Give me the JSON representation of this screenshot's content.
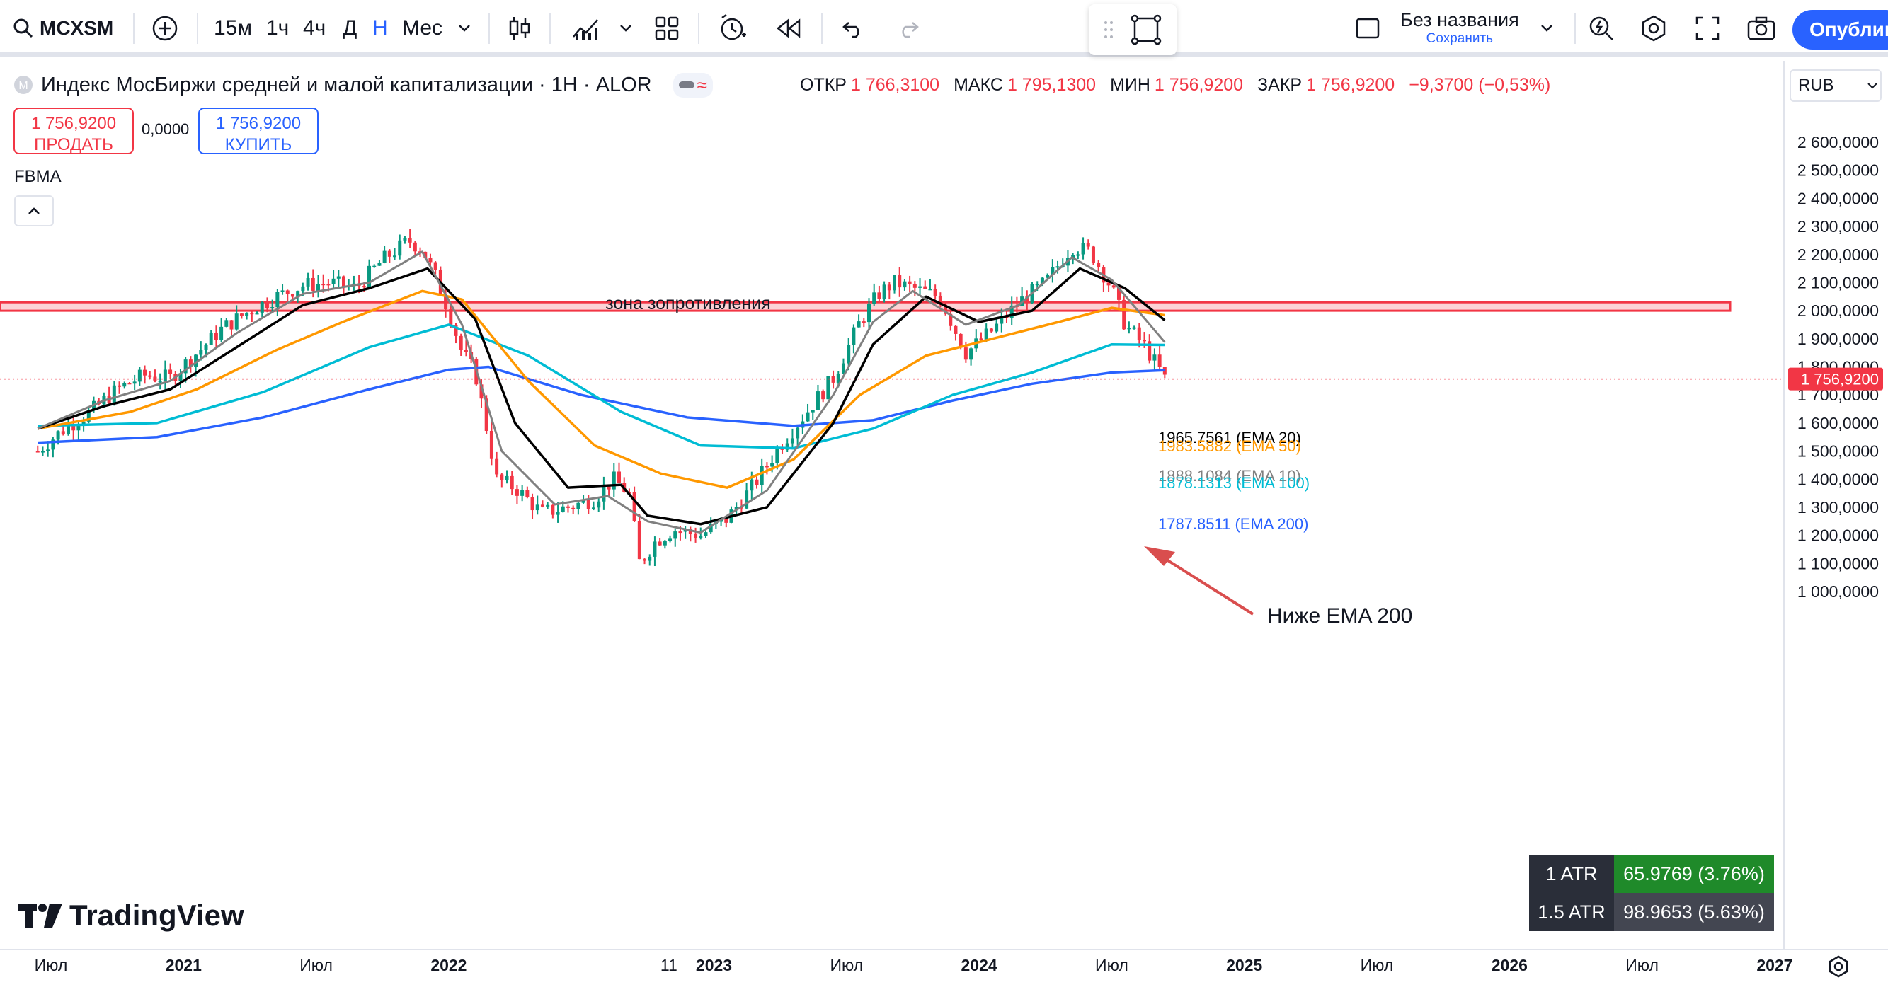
{
  "toolbar": {
    "symbol": "MCXSM",
    "intervals": [
      "15м",
      "1ч",
      "4ч",
      "Д",
      "Н",
      "Мес"
    ],
    "active_interval": "Н",
    "layout_name": "Без названия",
    "save_label": "Сохранить",
    "publish_label": "Опублик"
  },
  "legend": {
    "title": "Индекс МосБиржи средней и малой капитализации · 1Н · ALOR",
    "open_label": "ОТКР",
    "open": "1 766,3100",
    "high_label": "МАКС",
    "high": "1 795,1300",
    "low_label": "МИН",
    "low": "1 756,9200",
    "close_label": "ЗАКР",
    "close": "1 756,9200",
    "change": "−9,3700 (−0,53%)"
  },
  "trade": {
    "sell_price": "1 756,9200",
    "sell_label": "ПРОДАТЬ",
    "spread": "0,0000",
    "buy_price": "1 756,9200",
    "buy_label": "КУПИТЬ"
  },
  "indicator_name": "FBMA",
  "currency": "RUB",
  "atr": {
    "row1_label": "1 ATR",
    "row1_value": "65.9769 (3.76%)",
    "row2_label": "1.5 ATR",
    "row2_value": "98.9653 (5.63%)"
  },
  "logo_text": "TradingView",
  "colors": {
    "up": "#089981",
    "down": "#f23645",
    "ema10": "#808080",
    "ema20": "#000000",
    "ema50": "#ff9800",
    "ema100": "#00bcd4",
    "ema200": "#2962ff",
    "accent": "#2962ff"
  },
  "chart_data": {
    "type": "candlestick",
    "y_ticks": [
      "2 600,0000",
      "2 500,0000",
      "2 400,0000",
      "2 300,0000",
      "2 200,0000",
      "2 100,0000",
      "2 000,0000",
      "1 900,0000",
      "1 800,0000",
      "1 700,0000",
      "1 600,0000",
      "1 500,0000",
      "1 400,0000",
      "1 300,0000",
      "1 200,0000",
      "1 100,0000",
      "1 000,0000"
    ],
    "x_ticks": [
      "Июл",
      "2021",
      "Июл",
      "2022",
      "11",
      "2023",
      "Июл",
      "2024",
      "Июл",
      "2025",
      "Июл",
      "2026",
      "Июл",
      "2027"
    ],
    "last_price_label": "1 756,9200",
    "zone_label": "зона зопротивления",
    "zone_range": [
      2000,
      2030
    ],
    "ema_labels": [
      {
        "text": "1965.7561 (EMA 20)",
        "value": 1965.7561,
        "color": "#000000"
      },
      {
        "text": "1983.5882 (EMA 50)",
        "value": 1983.5882,
        "color": "#ff9800"
      },
      {
        "text": "1888.1084 (EMA 10)",
        "value": 1888.1084,
        "color": "#808080"
      },
      {
        "text": "1878.1313 (EMA 100)",
        "value": 1878.1313,
        "color": "#00bcd4"
      },
      {
        "text": "1787.8511 (EMA 200)",
        "value": 1787.8511,
        "color": "#2962ff"
      }
    ],
    "annotation": "Ниже EMA 200",
    "price_series": [
      [
        2020.45,
        1500
      ],
      [
        2020.55,
        1580
      ],
      [
        2020.65,
        1640
      ],
      [
        2020.75,
        1720
      ],
      [
        2020.85,
        1770
      ],
      [
        2020.95,
        1760
      ],
      [
        2021.05,
        1850
      ],
      [
        2021.15,
        1940
      ],
      [
        2021.25,
        2000
      ],
      [
        2021.35,
        2050
      ],
      [
        2021.45,
        2090
      ],
      [
        2021.55,
        2100
      ],
      [
        2021.65,
        2080
      ],
      [
        2021.75,
        2180
      ],
      [
        2021.85,
        2250
      ],
      [
        2021.9,
        2220
      ],
      [
        2021.95,
        2120
      ],
      [
        2022.0,
        2000
      ],
      [
        2022.05,
        1850
      ],
      [
        2022.1,
        1780
      ],
      [
        2022.15,
        1550
      ],
      [
        2022.18,
        1400
      ],
      [
        2022.25,
        1370
      ],
      [
        2022.35,
        1280
      ],
      [
        2022.45,
        1300
      ],
      [
        2022.55,
        1330
      ],
      [
        2022.62,
        1400
      ],
      [
        2022.68,
        1350
      ],
      [
        2022.72,
        1100
      ],
      [
        2022.78,
        1180
      ],
      [
        2022.85,
        1220
      ],
      [
        2022.95,
        1200
      ],
      [
        2023.05,
        1260
      ],
      [
        2023.15,
        1380
      ],
      [
        2023.25,
        1520
      ],
      [
        2023.35,
        1640
      ],
      [
        2023.45,
        1760
      ],
      [
        2023.55,
        1960
      ],
      [
        2023.62,
        2060
      ],
      [
        2023.68,
        2100
      ],
      [
        2023.75,
        2080
      ],
      [
        2023.85,
        2050
      ],
      [
        2023.9,
        1950
      ],
      [
        2023.95,
        1850
      ],
      [
        2024.05,
        1930
      ],
      [
        2024.15,
        2030
      ],
      [
        2024.25,
        2100
      ],
      [
        2024.35,
        2230
      ],
      [
        2024.42,
        2210
      ],
      [
        2024.5,
        2080
      ],
      [
        2024.55,
        1950
      ],
      [
        2024.62,
        1880
      ],
      [
        2024.68,
        1790
      ],
      [
        2024.7,
        1757
      ]
    ],
    "ema10": [
      [
        2020.45,
        1580
      ],
      [
        2020.7,
        1680
      ],
      [
        2020.95,
        1750
      ],
      [
        2021.2,
        1920
      ],
      [
        2021.45,
        2060
      ],
      [
        2021.7,
        2100
      ],
      [
        2021.9,
        2210
      ],
      [
        2022.05,
        1950
      ],
      [
        2022.2,
        1500
      ],
      [
        2022.4,
        1310
      ],
      [
        2022.6,
        1340
      ],
      [
        2022.75,
        1250
      ],
      [
        2022.95,
        1210
      ],
      [
        2023.2,
        1360
      ],
      [
        2023.45,
        1700
      ],
      [
        2023.6,
        1960
      ],
      [
        2023.75,
        2070
      ],
      [
        2023.95,
        1950
      ],
      [
        2024.15,
        2020
      ],
      [
        2024.35,
        2190
      ],
      [
        2024.5,
        2110
      ],
      [
        2024.7,
        1888
      ]
    ],
    "ema20": [
      [
        2020.45,
        1580
      ],
      [
        2020.7,
        1660
      ],
      [
        2020.95,
        1720
      ],
      [
        2021.2,
        1870
      ],
      [
        2021.45,
        2020
      ],
      [
        2021.7,
        2080
      ],
      [
        2021.92,
        2150
      ],
      [
        2022.1,
        1970
      ],
      [
        2022.25,
        1600
      ],
      [
        2022.45,
        1370
      ],
      [
        2022.65,
        1380
      ],
      [
        2022.75,
        1270
      ],
      [
        2022.95,
        1240
      ],
      [
        2023.2,
        1300
      ],
      [
        2023.45,
        1600
      ],
      [
        2023.6,
        1880
      ],
      [
        2023.8,
        2050
      ],
      [
        2024.0,
        1960
      ],
      [
        2024.2,
        2000
      ],
      [
        2024.38,
        2150
      ],
      [
        2024.55,
        2080
      ],
      [
        2024.7,
        1966
      ]
    ],
    "ema50": [
      [
        2020.45,
        1580
      ],
      [
        2020.8,
        1640
      ],
      [
        2021.05,
        1720
      ],
      [
        2021.35,
        1860
      ],
      [
        2021.6,
        1960
      ],
      [
        2021.9,
        2070
      ],
      [
        2022.05,
        2040
      ],
      [
        2022.3,
        1750
      ],
      [
        2022.55,
        1520
      ],
      [
        2022.8,
        1420
      ],
      [
        2023.05,
        1370
      ],
      [
        2023.3,
        1470
      ],
      [
        2023.55,
        1700
      ],
      [
        2023.8,
        1840
      ],
      [
        2024.05,
        1900
      ],
      [
        2024.3,
        1960
      ],
      [
        2024.5,
        2010
      ],
      [
        2024.7,
        1984
      ]
    ],
    "ema100": [
      [
        2020.45,
        1590
      ],
      [
        2020.9,
        1600
      ],
      [
        2021.3,
        1710
      ],
      [
        2021.7,
        1870
      ],
      [
        2022.0,
        1950
      ],
      [
        2022.3,
        1840
      ],
      [
        2022.65,
        1640
      ],
      [
        2022.95,
        1520
      ],
      [
        2023.3,
        1510
      ],
      [
        2023.6,
        1580
      ],
      [
        2023.9,
        1700
      ],
      [
        2024.2,
        1780
      ],
      [
        2024.5,
        1880
      ],
      [
        2024.7,
        1878
      ]
    ],
    "ema200": [
      [
        2020.45,
        1530
      ],
      [
        2020.9,
        1550
      ],
      [
        2021.3,
        1620
      ],
      [
        2021.7,
        1720
      ],
      [
        2022.0,
        1790
      ],
      [
        2022.15,
        1800
      ],
      [
        2022.5,
        1700
      ],
      [
        2022.9,
        1620
      ],
      [
        2023.3,
        1590
      ],
      [
        2023.6,
        1610
      ],
      [
        2023.9,
        1680
      ],
      [
        2024.2,
        1740
      ],
      [
        2024.5,
        1780
      ],
      [
        2024.7,
        1788
      ]
    ]
  }
}
